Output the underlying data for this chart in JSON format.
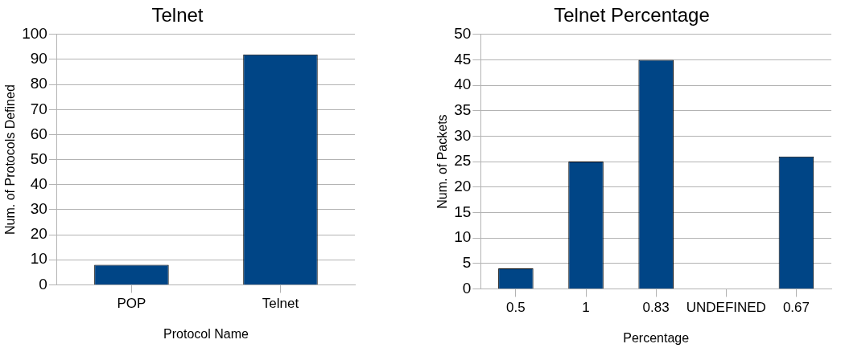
{
  "chart_data": [
    {
      "type": "bar",
      "title": "Telnet",
      "xlabel": "Protocol Name",
      "ylabel": "Num. of Protocols Defined",
      "categories": [
        "POP",
        "Telnet"
      ],
      "values": [
        8,
        92
      ],
      "color": "#004586",
      "ylim": [
        0,
        100
      ],
      "yticks": [
        0,
        10,
        20,
        30,
        40,
        50,
        60,
        70,
        80,
        90,
        100
      ],
      "grid": "y",
      "legend": false
    },
    {
      "type": "bar",
      "title": "Telnet Percentage",
      "xlabel": "Percentage",
      "ylabel": "Num. of Packets",
      "categories": [
        "0.5",
        "1",
        "0.83",
        "UNDEFINED",
        "0.67"
      ],
      "values": [
        4,
        25,
        45,
        0,
        26
      ],
      "color": "#004586",
      "ylim": [
        0,
        50
      ],
      "yticks": [
        0,
        5,
        10,
        15,
        20,
        25,
        30,
        35,
        40,
        45,
        50
      ],
      "grid": "y",
      "legend": false
    }
  ]
}
